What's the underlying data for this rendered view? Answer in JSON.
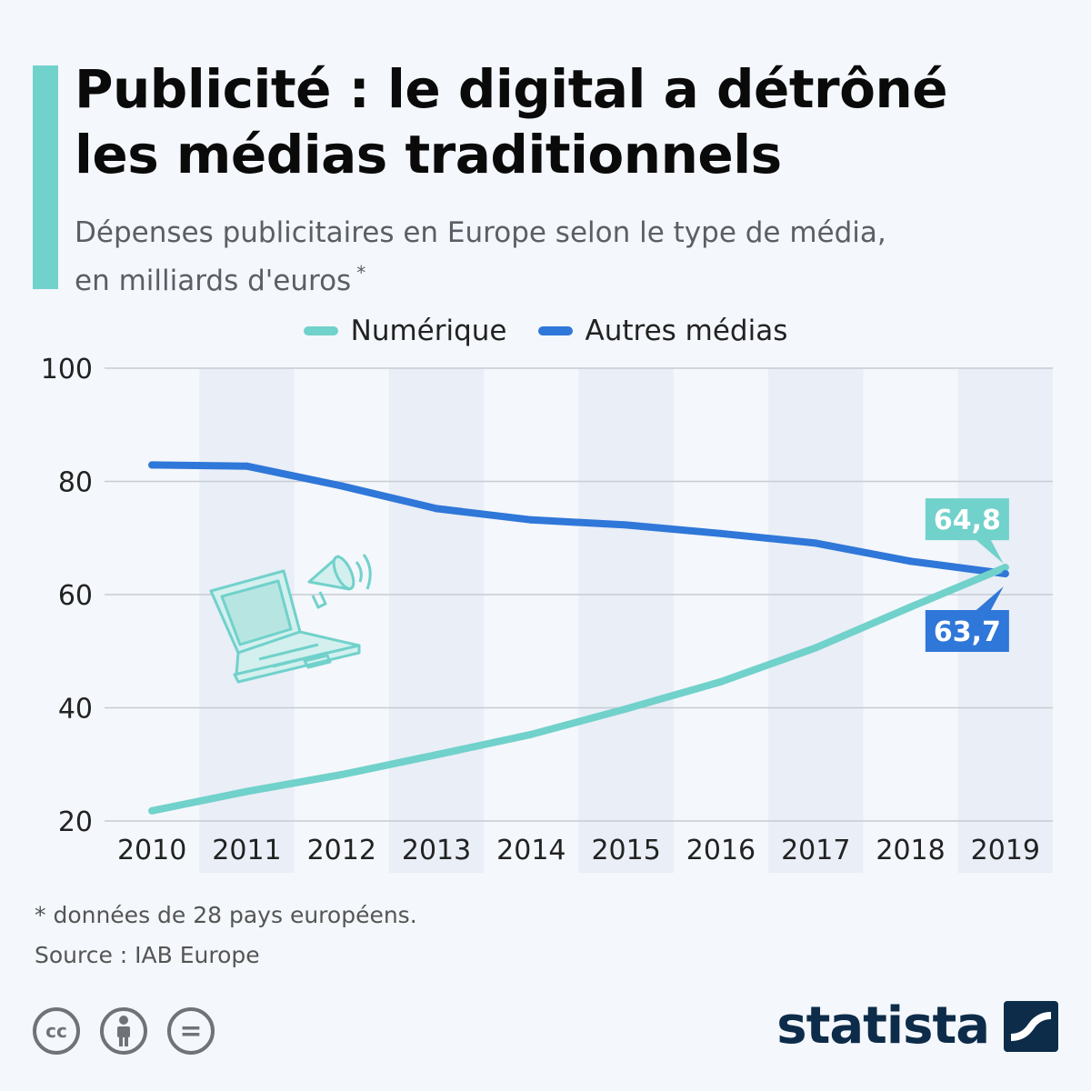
{
  "colors": {
    "accent": "#71d1cb",
    "digital": "#71d1cb",
    "other": "#2f77d8",
    "grid": "#c7ccd3",
    "stripe": "#e9eef7",
    "brand": "#0d2c4a",
    "icon_gray": "#6f7379"
  },
  "header": {
    "title_line1": "Publicité : le digital a détrôné",
    "title_line2": "les médias traditionnels",
    "subtitle_line1": "Dépenses publicitaires en Europe selon le type de média,",
    "subtitle_line2": "en milliards d'euros",
    "subtitle_mark": "*"
  },
  "legend": [
    {
      "label": "Numérique",
      "color": "#71d1cb"
    },
    {
      "label": "Autres médias",
      "color": "#2f77d8"
    }
  ],
  "chart_data": {
    "type": "line",
    "x": [
      "2010",
      "2011",
      "2012",
      "2013",
      "2014",
      "2015",
      "2016",
      "2017",
      "2018",
      "2019"
    ],
    "series": [
      {
        "name": "Numérique",
        "color": "#71d1cb",
        "values": [
          21.8,
          25.2,
          28.2,
          31.7,
          35.3,
          39.8,
          44.6,
          50.6,
          57.8,
          64.8
        ]
      },
      {
        "name": "Autres médias",
        "color": "#2f77d8",
        "values": [
          82.9,
          82.7,
          79.2,
          75.2,
          73.2,
          72.3,
          70.8,
          69.1,
          65.9,
          63.7
        ]
      }
    ],
    "ylim": [
      20,
      100
    ],
    "yticks": [
      20,
      40,
      60,
      80,
      100
    ],
    "grid": true,
    "alternating_column_stripes": true,
    "legend_position": "top",
    "annotations": [
      {
        "label": "64,8",
        "series": "Numérique",
        "x": "2019",
        "position": "above"
      },
      {
        "label": "63,7",
        "series": "Autres médias",
        "x": "2019",
        "position": "below"
      }
    ]
  },
  "illustration": {
    "laptop_icon": "laptop-icon",
    "megaphone_icon": "megaphone-icon"
  },
  "footer": {
    "footnote": "* données de 28 pays européens.",
    "source": "Source : IAB Europe",
    "license_icons": [
      {
        "name": "cc-icon",
        "glyph": "cc"
      },
      {
        "name": "attribution-icon",
        "glyph": ""
      },
      {
        "name": "no-derivatives-icon",
        "glyph": "="
      }
    ],
    "brand": "statista"
  }
}
